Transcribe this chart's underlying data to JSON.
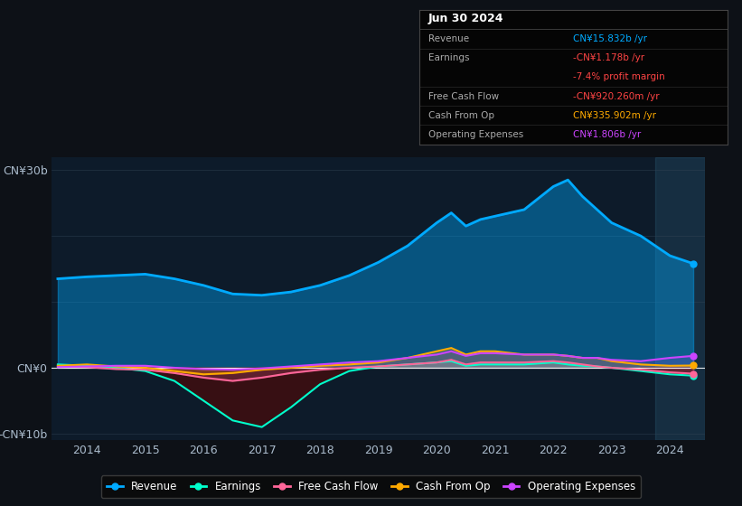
{
  "background_color": "#0d1117",
  "plot_bg_color": "#0d1b2a",
  "info_box": {
    "title": "Jun 30 2024",
    "rows": [
      {
        "label": "Revenue",
        "value": "CN¥15.832b /yr",
        "value_color": "#00aaff"
      },
      {
        "label": "Earnings",
        "value": "-CN¥1.178b /yr",
        "value_color": "#ff4444"
      },
      {
        "label": "",
        "value": "-7.4% profit margin",
        "value_color": "#ff4444"
      },
      {
        "label": "Free Cash Flow",
        "value": "-CN¥920.260m /yr",
        "value_color": "#ff4444"
      },
      {
        "label": "Cash From Op",
        "value": "CN¥335.902m /yr",
        "value_color": "#ffaa00"
      },
      {
        "label": "Operating Expenses",
        "value": "CN¥1.806b /yr",
        "value_color": "#cc44ff"
      }
    ]
  },
  "years": [
    2013.5,
    2014,
    2014.5,
    2015,
    2015.5,
    2016,
    2016.5,
    2017,
    2017.5,
    2018,
    2018.5,
    2019,
    2019.5,
    2020,
    2020.25,
    2020.5,
    2020.75,
    2021,
    2021.5,
    2022,
    2022.25,
    2022.5,
    2022.75,
    2023,
    2023.5,
    2024,
    2024.4
  ],
  "revenue": [
    13.5,
    13.8,
    14.0,
    14.2,
    13.5,
    12.5,
    11.2,
    11.0,
    11.5,
    12.5,
    14.0,
    16.0,
    18.5,
    22.0,
    23.5,
    21.5,
    22.5,
    23.0,
    24.0,
    27.5,
    28.5,
    26.0,
    24.0,
    22.0,
    20.0,
    17.0,
    15.8
  ],
  "earnings": [
    0.5,
    0.3,
    0.0,
    -0.5,
    -2.0,
    -5.0,
    -8.0,
    -9.0,
    -6.0,
    -2.5,
    -0.5,
    0.2,
    0.5,
    0.8,
    1.0,
    0.3,
    0.5,
    0.5,
    0.5,
    0.8,
    0.5,
    0.3,
    0.2,
    0.0,
    -0.5,
    -1.0,
    -1.2
  ],
  "free_cash_flow": [
    0.2,
    0.1,
    -0.2,
    -0.3,
    -0.8,
    -1.5,
    -2.0,
    -1.5,
    -0.8,
    -0.3,
    0.0,
    0.2,
    0.5,
    0.8,
    1.2,
    0.5,
    0.8,
    0.8,
    0.8,
    1.0,
    0.8,
    0.5,
    0.2,
    0.0,
    -0.3,
    -0.7,
    -0.9
  ],
  "cash_from_op": [
    0.3,
    0.5,
    0.2,
    0.0,
    -0.5,
    -1.0,
    -0.8,
    -0.3,
    0.0,
    0.3,
    0.5,
    0.8,
    1.5,
    2.5,
    3.0,
    2.0,
    2.5,
    2.5,
    2.0,
    2.0,
    1.8,
    1.5,
    1.5,
    1.0,
    0.5,
    0.3,
    0.34
  ],
  "operating_expenses": [
    0.1,
    0.2,
    0.3,
    0.3,
    0.0,
    -0.2,
    -0.3,
    -0.1,
    0.2,
    0.5,
    0.8,
    1.0,
    1.5,
    2.0,
    2.5,
    1.8,
    2.2,
    2.2,
    2.0,
    2.0,
    1.8,
    1.5,
    1.5,
    1.2,
    1.0,
    1.5,
    1.8
  ],
  "ytick_vals": [
    -10,
    0,
    10,
    20,
    30
  ],
  "ytick_labels": [
    "-CN¥10b",
    "CN¥0",
    "",
    "",
    "CN¥30b"
  ],
  "colors": {
    "revenue": "#00aaff",
    "earnings": "#00ffcc",
    "free_cash_flow": "#ff6699",
    "cash_from_op": "#ffaa00",
    "operating_expenses": "#cc44ff"
  },
  "x_ticks": [
    2014,
    2015,
    2016,
    2017,
    2018,
    2019,
    2020,
    2021,
    2022,
    2023,
    2024
  ],
  "xlim": [
    2013.4,
    2024.6
  ],
  "ylim": [
    -11,
    32
  ],
  "dark_span_start": 2023.75,
  "earnings_neg_fill_color": "#4a0a0a",
  "grid_color": "#334455",
  "zero_line_color": "#ffffff",
  "separator_color": "#444444",
  "row_sep_color": "#333333",
  "label_color": "#aaaaaa",
  "tick_color": "#aabbcc"
}
